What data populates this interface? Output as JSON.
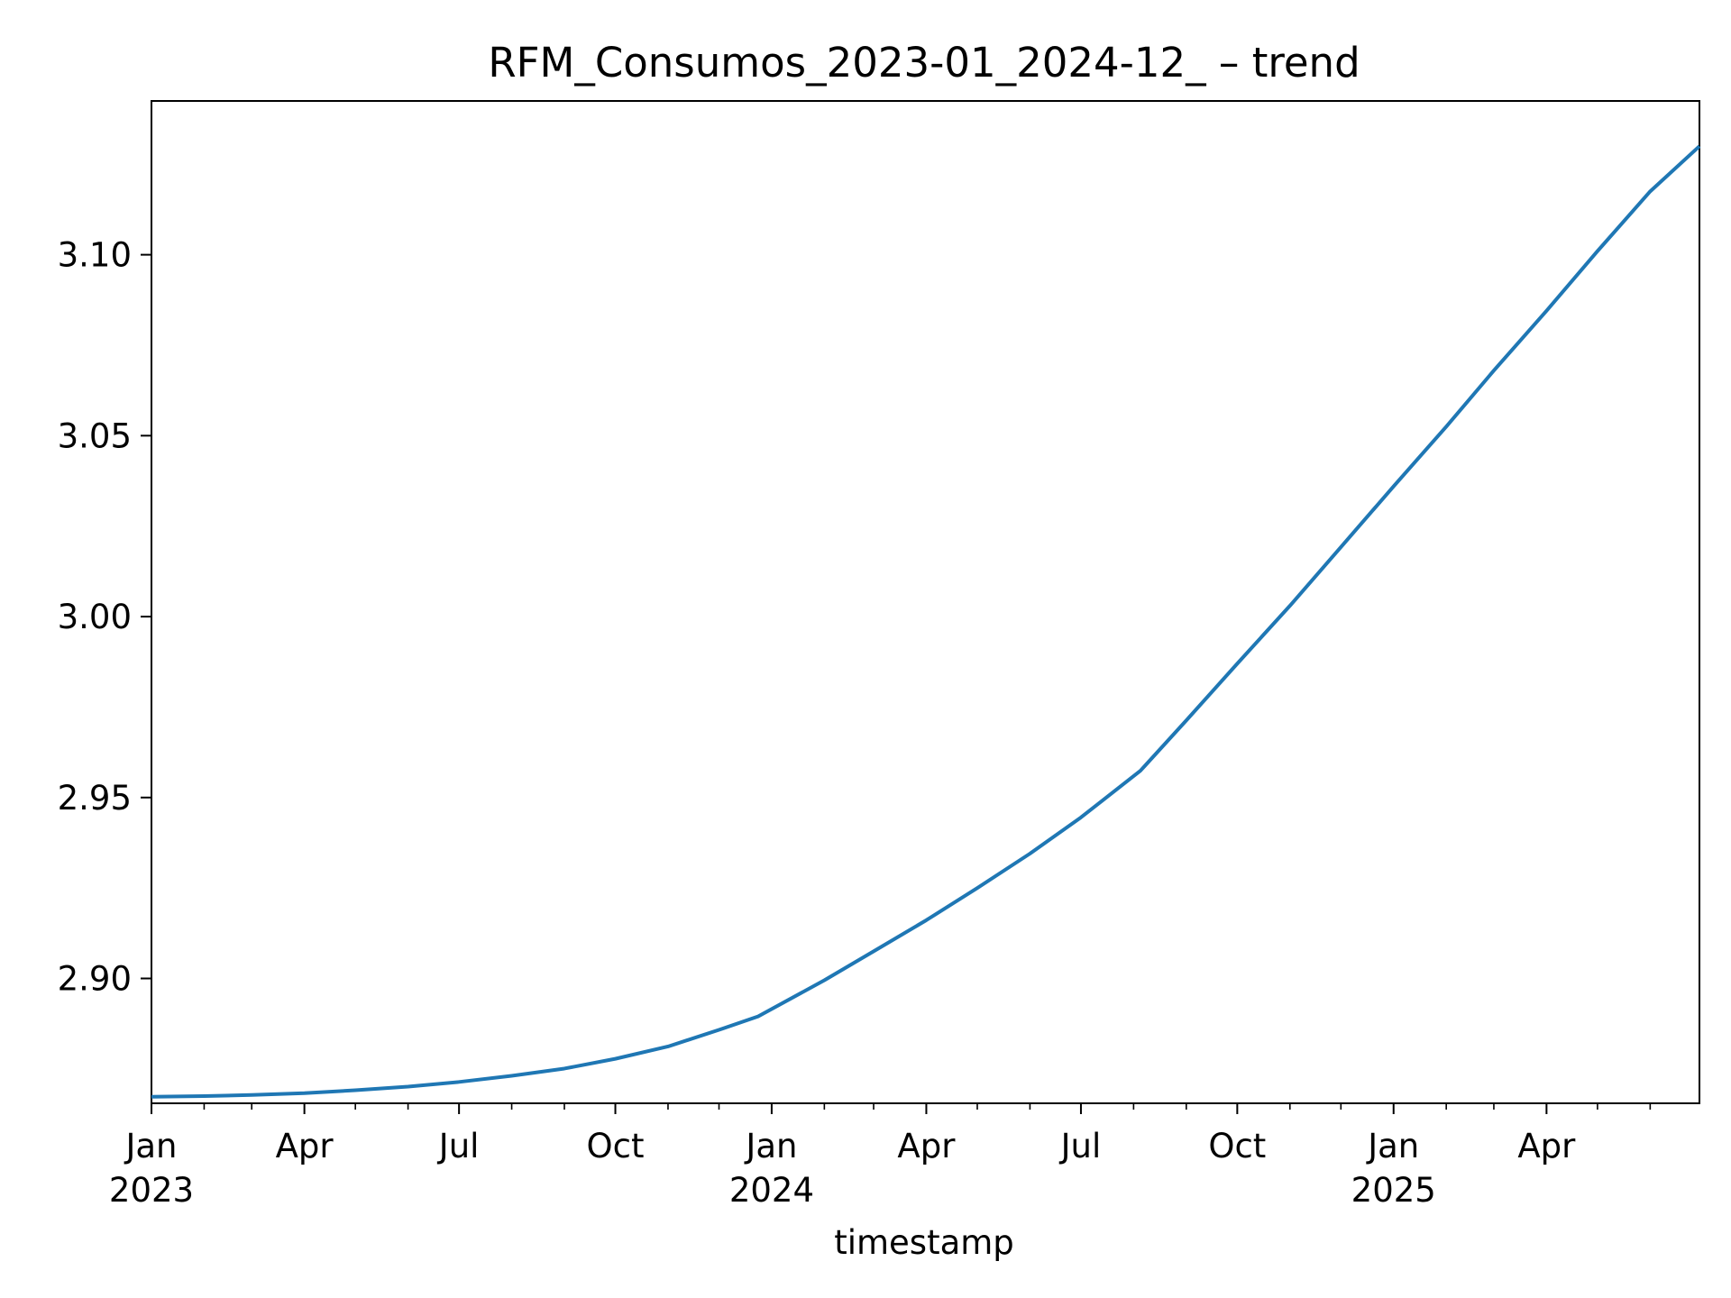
{
  "chart_data": {
    "type": "line",
    "title": "RFM_Consumos_2023-01_2024-12_ – trend",
    "xlabel": "timestamp",
    "ylabel": "",
    "xlim": [
      "2023-01-01",
      "2025-06-30"
    ],
    "ylim": [
      2.8655,
      3.1425
    ],
    "grid": false,
    "legend": "none",
    "colors": {
      "line": "#1f77b4",
      "axes": "#000000",
      "background": "#ffffff"
    },
    "x_ticks": [
      {
        "date": "2023-01-01",
        "label": "Jan",
        "year": "2023"
      },
      {
        "date": "2023-04-01",
        "label": "Apr",
        "year": ""
      },
      {
        "date": "2023-07-01",
        "label": "Jul",
        "year": ""
      },
      {
        "date": "2023-10-01",
        "label": "Oct",
        "year": ""
      },
      {
        "date": "2024-01-01",
        "label": "Jan",
        "year": "2024"
      },
      {
        "date": "2024-04-01",
        "label": "Apr",
        "year": ""
      },
      {
        "date": "2024-07-01",
        "label": "Jul",
        "year": ""
      },
      {
        "date": "2024-10-01",
        "label": "Oct",
        "year": ""
      },
      {
        "date": "2025-01-01",
        "label": "Jan",
        "year": "2025"
      },
      {
        "date": "2025-04-01",
        "label": "Apr",
        "year": ""
      }
    ],
    "x_minor_ticks": [
      "2023-02-01",
      "2023-03-01",
      "2023-05-01",
      "2023-06-01",
      "2023-08-01",
      "2023-09-01",
      "2023-11-01",
      "2023-12-01",
      "2024-02-01",
      "2024-03-01",
      "2024-05-01",
      "2024-06-01",
      "2024-08-01",
      "2024-09-01",
      "2024-11-01",
      "2024-12-01",
      "2025-02-01",
      "2025-03-01",
      "2025-05-01",
      "2025-06-01"
    ],
    "y_ticks": [
      {
        "value": 2.9,
        "label": "2.90"
      },
      {
        "value": 2.95,
        "label": "2.95"
      },
      {
        "value": 3.0,
        "label": "3.00"
      },
      {
        "value": 3.05,
        "label": "3.05"
      },
      {
        "value": 3.1,
        "label": "3.10"
      }
    ],
    "series": [
      {
        "x": [
          "2023-01-01",
          "2023-02-01",
          "2023-03-01",
          "2023-04-01",
          "2023-05-01",
          "2023-06-01",
          "2023-07-01",
          "2023-08-01",
          "2023-09-01",
          "2023-10-01",
          "2023-11-01",
          "2023-12-01",
          "2023-12-24",
          "2024-02-01",
          "2024-03-01",
          "2024-04-01",
          "2024-05-01",
          "2024-06-01",
          "2024-07-01",
          "2024-08-05",
          "2024-09-01",
          "2024-10-01",
          "2024-11-01",
          "2024-12-01",
          "2025-01-01",
          "2025-02-01",
          "2025-03-01",
          "2025-04-01",
          "2025-05-01",
          "2025-06-01",
          "2025-06-30"
        ],
        "values": [
          2.8673,
          2.8675,
          2.8678,
          2.8683,
          2.8691,
          2.8701,
          2.8714,
          2.8731,
          2.8751,
          2.8778,
          2.8812,
          2.8858,
          2.8895,
          2.8995,
          2.9075,
          2.9161,
          2.925,
          2.9345,
          2.9445,
          2.9574,
          2.9713,
          2.987,
          3.003,
          3.0192,
          3.036,
          3.0525,
          3.068,
          3.0845,
          3.101,
          3.1175,
          3.13
        ]
      }
    ]
  }
}
